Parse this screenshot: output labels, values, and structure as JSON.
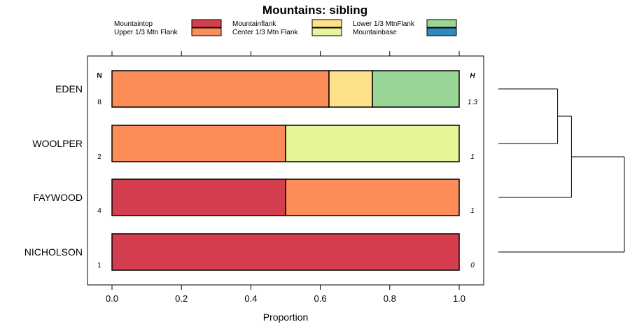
{
  "chart_data": {
    "type": "bar",
    "orientation": "horizontal",
    "stacked": true,
    "title": "Mountains: sibling",
    "xlabel": "Proportion",
    "ylabel": "",
    "xlim": [
      0,
      1
    ],
    "xticks": [
      "0.0",
      "0.2",
      "0.4",
      "0.6",
      "0.8",
      "1.0"
    ],
    "n_header": "N",
    "h_header": "H",
    "legend": [
      {
        "name": "Mountaintop",
        "color": "#d53e4f"
      },
      {
        "name": "Upper 1/3 Mtn Flank",
        "color": "#fc8d59"
      },
      {
        "name": "Mountainflank",
        "color": "#fee08b"
      },
      {
        "name": "Center 1/3 Mtn Flank",
        "color": "#e6f598"
      },
      {
        "name": "Lower 1/3 MtnFlank",
        "color": "#99d594"
      },
      {
        "name": "Mountainbase",
        "color": "#3288bd"
      }
    ],
    "categories": [
      "EDEN",
      "WOOLPER",
      "FAYWOOD",
      "NICHOLSON"
    ],
    "n": [
      "8",
      "2",
      "4",
      "1"
    ],
    "h": [
      "1.3",
      "1",
      "1",
      "0"
    ],
    "series": [
      {
        "name": "Mountaintop",
        "values": [
          0,
          0,
          0.5,
          1
        ]
      },
      {
        "name": "Upper 1/3 Mtn Flank",
        "values": [
          0.625,
          0.5,
          0.5,
          0
        ]
      },
      {
        "name": "Mountainflank",
        "values": [
          0.125,
          0,
          0,
          0
        ]
      },
      {
        "name": "Center 1/3 Mtn Flank",
        "values": [
          0,
          0.5,
          0,
          0
        ]
      },
      {
        "name": "Lower 1/3 MtnFlank",
        "values": [
          0.25,
          0,
          0,
          0
        ]
      },
      {
        "name": "Mountainbase",
        "values": [
          0,
          0,
          0,
          0
        ]
      }
    ],
    "dendrogram": {
      "merges": [
        {
          "a": "EDEN",
          "b": "WOOLPER",
          "height": 0.47
        },
        {
          "a": "EDEN+WOOLPER",
          "b": "FAYWOOD",
          "height": 0.58
        },
        {
          "a": "EDEN+WOOLPER+FAYWOOD",
          "b": "NICHOLSON",
          "height": 1.0
        }
      ]
    }
  }
}
